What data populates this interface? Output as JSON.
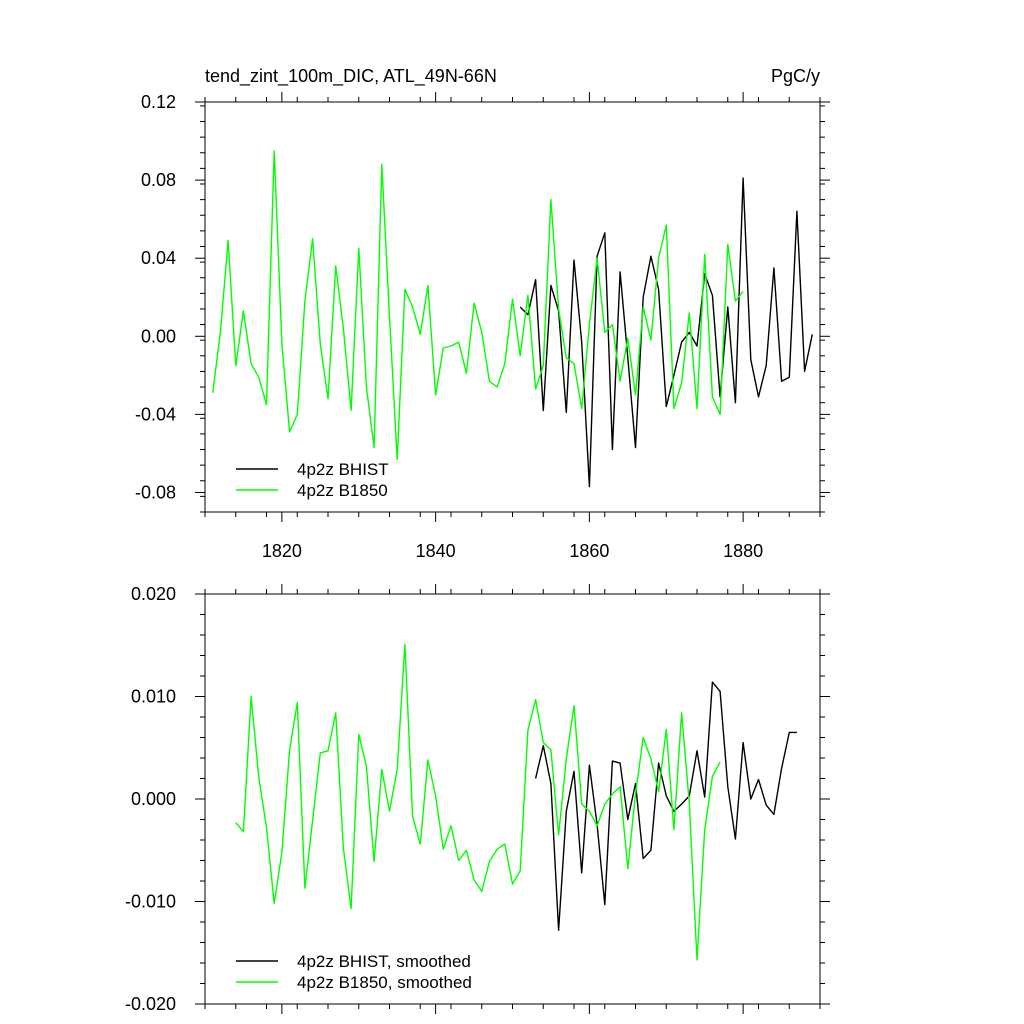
{
  "colors": {
    "bhist": "#000000",
    "b1850": "#00ff00"
  },
  "chart_data": [
    {
      "type": "line",
      "title": "tend_zint_100m_DIC, ATL_49N-66N",
      "units": "PgC/y",
      "xlim": [
        1810,
        1890
      ],
      "ylim": [
        -0.09,
        0.12
      ],
      "xticks": [
        1820,
        1840,
        1860,
        1880
      ],
      "xtick_labels": [
        "1820",
        "1840",
        "1860",
        "1880"
      ],
      "yticks": [
        0.12,
        0.08,
        0.04,
        0.0,
        -0.04,
        -0.08
      ],
      "ytick_labels": [
        "0.12",
        "0.08",
        "0.04",
        "0.00",
        "-0.04",
        "-0.08"
      ],
      "legend_position": "bottom-left",
      "series": [
        {
          "name": "4p2z BHIST",
          "color": "#000000",
          "x": [
            1851,
            1852,
            1853,
            1854,
            1855,
            1856,
            1857,
            1858,
            1859,
            1860,
            1861,
            1862,
            1863,
            1864,
            1865,
            1866,
            1867,
            1868,
            1869,
            1870,
            1871,
            1872,
            1873,
            1874,
            1875,
            1876,
            1877,
            1878,
            1879,
            1880,
            1881,
            1882,
            1883,
            1884,
            1885,
            1886,
            1887,
            1888,
            1889
          ],
          "y": [
            0.015,
            0.011,
            0.029,
            -0.038,
            0.026,
            0.013,
            -0.039,
            0.039,
            -0.003,
            -0.077,
            0.041,
            0.053,
            -0.058,
            0.033,
            -0.011,
            -0.057,
            0.02,
            0.041,
            0.024,
            -0.036,
            -0.02,
            -0.003,
            0.002,
            -0.005,
            0.032,
            0.021,
            -0.031,
            0.015,
            -0.034,
            0.081,
            -0.012,
            -0.031,
            -0.015,
            0.035,
            -0.023,
            -0.021,
            0.064,
            -0.018,
            0.001
          ]
        },
        {
          "name": "4p2z B1850",
          "color": "#00ff00",
          "x": [
            1811,
            1812,
            1813,
            1814,
            1815,
            1816,
            1817,
            1818,
            1819,
            1820,
            1821,
            1822,
            1823,
            1824,
            1825,
            1826,
            1827,
            1828,
            1829,
            1830,
            1831,
            1832,
            1833,
            1834,
            1835,
            1836,
            1837,
            1838,
            1839,
            1840,
            1841,
            1842,
            1843,
            1844,
            1845,
            1846,
            1847,
            1848,
            1849,
            1850,
            1851,
            1852,
            1853,
            1854,
            1855,
            1856,
            1857,
            1858,
            1859,
            1860,
            1861,
            1862,
            1863,
            1864,
            1865,
            1866,
            1867,
            1868,
            1869,
            1870,
            1871,
            1872,
            1873,
            1874,
            1875,
            1876,
            1877,
            1878,
            1879,
            1880
          ],
          "y": [
            -0.029,
            0.002,
            0.049,
            -0.015,
            0.013,
            -0.014,
            -0.021,
            -0.035,
            0.095,
            -0.004,
            -0.049,
            -0.04,
            0.018,
            0.05,
            -0.004,
            -0.032,
            0.036,
            0.004,
            -0.038,
            0.045,
            -0.026,
            -0.057,
            0.088,
            0.01,
            -0.063,
            0.024,
            0.015,
            0.001,
            0.026,
            -0.03,
            -0.006,
            -0.005,
            -0.003,
            -0.019,
            0.017,
            0.002,
            -0.023,
            -0.026,
            -0.014,
            0.019,
            -0.01,
            0.021,
            -0.027,
            -0.015,
            0.07,
            0.014,
            -0.011,
            -0.014,
            -0.037,
            0.006,
            0.04,
            0.002,
            0.006,
            -0.023,
            -0.001,
            -0.03,
            0.015,
            -0.002,
            0.04,
            0.057,
            -0.037,
            -0.024,
            0.012,
            -0.037,
            0.042,
            -0.031,
            -0.04,
            0.047,
            0.018,
            0.023
          ]
        }
      ]
    },
    {
      "type": "line",
      "title": "",
      "xlim": [
        1810,
        1890
      ],
      "ylim": [
        -0.02,
        0.02
      ],
      "xticks": [
        1820,
        1840,
        1860,
        1880
      ],
      "xtick_labels": [],
      "yticks": [
        0.02,
        0.01,
        0.0,
        -0.01,
        -0.02
      ],
      "ytick_labels": [
        "0.020",
        "0.010",
        "0.000",
        "-0.010",
        "-0.020"
      ],
      "legend_position": "bottom-left",
      "series": [
        {
          "name": "4p2z BHIST, smoothed",
          "color": "#000000",
          "x": [
            1853,
            1854,
            1855,
            1856,
            1857,
            1858,
            1859,
            1860,
            1861,
            1862,
            1863,
            1864,
            1865,
            1866,
            1867,
            1868,
            1869,
            1870,
            1871,
            1872,
            1873,
            1874,
            1875,
            1876,
            1877,
            1878,
            1879,
            1880,
            1881,
            1882,
            1883,
            1884,
            1885,
            1886,
            1887
          ],
          "y": [
            0.002,
            0.0052,
            0.0015,
            -0.0128,
            -0.0012,
            0.0027,
            -0.0072,
            0.0033,
            -0.0025,
            -0.0103,
            0.0037,
            0.0035,
            -0.002,
            0.0015,
            -0.0058,
            -0.005,
            0.0035,
            0.0003,
            -0.0012,
            -0.0005,
            0.0003,
            0.0047,
            0.0002,
            0.0114,
            0.0105,
            0.0012,
            -0.0039,
            0.0055,
            0.0,
            0.0019,
            -0.0006,
            -0.0015,
            0.003,
            0.0065,
            0.0065
          ]
        },
        {
          "name": "4p2z B1850, smoothed",
          "color": "#00ff00",
          "x": [
            1814,
            1815,
            1816,
            1817,
            1818,
            1819,
            1820,
            1821,
            1822,
            1823,
            1824,
            1825,
            1826,
            1827,
            1828,
            1829,
            1830,
            1831,
            1832,
            1833,
            1834,
            1835,
            1836,
            1837,
            1838,
            1839,
            1840,
            1841,
            1842,
            1843,
            1844,
            1845,
            1846,
            1847,
            1848,
            1849,
            1850,
            1851,
            1852,
            1853,
            1854,
            1855,
            1856,
            1857,
            1858,
            1859,
            1860,
            1861,
            1862,
            1863,
            1864,
            1865,
            1866,
            1867,
            1868,
            1869,
            1870,
            1871,
            1872,
            1873,
            1874,
            1875,
            1876,
            1877
          ],
          "y": [
            -0.0023,
            -0.0032,
            0.01,
            0.0021,
            -0.0028,
            -0.0102,
            -0.0052,
            0.0048,
            0.0094,
            -0.0087,
            -0.0021,
            0.0045,
            0.0047,
            0.0084,
            -0.0048,
            -0.0107,
            0.0063,
            0.0032,
            -0.0061,
            0.0029,
            -0.0012,
            0.0029,
            0.0151,
            -0.0017,
            -0.0044,
            0.0038,
            0.0003,
            -0.0049,
            -0.0026,
            -0.006,
            -0.005,
            -0.0079,
            -0.009,
            -0.0061,
            -0.0049,
            -0.0044,
            -0.0083,
            -0.007,
            0.0067,
            0.0097,
            0.0055,
            0.0048,
            -0.0035,
            0.0039,
            0.0091,
            -0.0005,
            -0.0012,
            -0.0026,
            -0.0005,
            0.0005,
            0.0012,
            -0.0068,
            0.0005,
            0.006,
            0.0039,
            0.0007,
            0.0068,
            -0.003,
            0.0084,
            -0.0004,
            -0.0157,
            -0.003,
            0.0022,
            0.0036
          ]
        }
      ]
    }
  ]
}
